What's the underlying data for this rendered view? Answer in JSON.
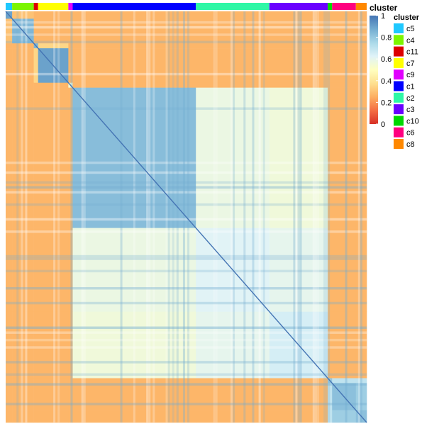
{
  "chart_data": {
    "type": "heatmap",
    "annotation_title": "cluster",
    "top_annotation_title": "cluster",
    "colorbar": {
      "ticks": [
        "1",
        "0.8",
        "0.6",
        "0.4",
        "0.2",
        "0"
      ],
      "range": [
        0,
        1
      ],
      "colors": [
        "#d73027",
        "#f46d43",
        "#fdae61",
        "#fee090",
        "#ffffbf",
        "#e0f3f8",
        "#abd9e9",
        "#74add1",
        "#4575b4"
      ]
    },
    "clusters": [
      {
        "name": "c5",
        "size": 3,
        "color": "#1ec8ff"
      },
      {
        "name": "c4",
        "size": 10,
        "color": "#7cf500"
      },
      {
        "name": "c11",
        "size": 2,
        "color": "#dd0000"
      },
      {
        "name": "c7",
        "size": 14,
        "color": "#ffff00"
      },
      {
        "name": "c9",
        "size": 2,
        "color": "#e100ff"
      },
      {
        "name": "c1",
        "size": 57,
        "color": "#0000ff"
      },
      {
        "name": "c2",
        "size": 34,
        "color": "#2ef7a6"
      },
      {
        "name": "c3",
        "size": 27,
        "color": "#6a00ff"
      },
      {
        "name": "c10",
        "size": 2,
        "color": "#00d800"
      },
      {
        "name": "c6",
        "size": 11,
        "color": "#ff007f"
      },
      {
        "name": "c8",
        "size": 5,
        "color": "#ff8800"
      }
    ],
    "legend": [
      "c5",
      "c4",
      "c11",
      "c7",
      "c9",
      "c1",
      "c2",
      "c3",
      "c10",
      "c6",
      "c8"
    ],
    "within_cluster_similarity": {
      "c5": 0.9,
      "c4": 0.85,
      "c11": 0.85,
      "c7": 0.9,
      "c9": 0.55,
      "c1": 0.83,
      "c2": 0.62,
      "c3": 0.65,
      "c10": 0.8,
      "c6": 0.82,
      "c8": 0.82
    },
    "between_cluster_similarity": [
      {
        "a": "c1",
        "b": "c2",
        "value": 0.58
      },
      {
        "a": "c1",
        "b": "c3",
        "value": 0.56
      },
      {
        "a": "c2",
        "b": "c3",
        "value": 0.6
      },
      {
        "a": "c5",
        "b": "c4",
        "value": 0.3
      },
      {
        "a": "c7",
        "b": "c11",
        "value": 0.35
      },
      {
        "a": "c6",
        "b": "c8",
        "value": 0.78
      },
      {
        "a": "c10",
        "b": "c6",
        "value": 0.7
      },
      {
        "a": "c10",
        "b": "c8",
        "value": 0.7
      }
    ],
    "default_between_similarity": 0.27,
    "diagonal": 1
  }
}
